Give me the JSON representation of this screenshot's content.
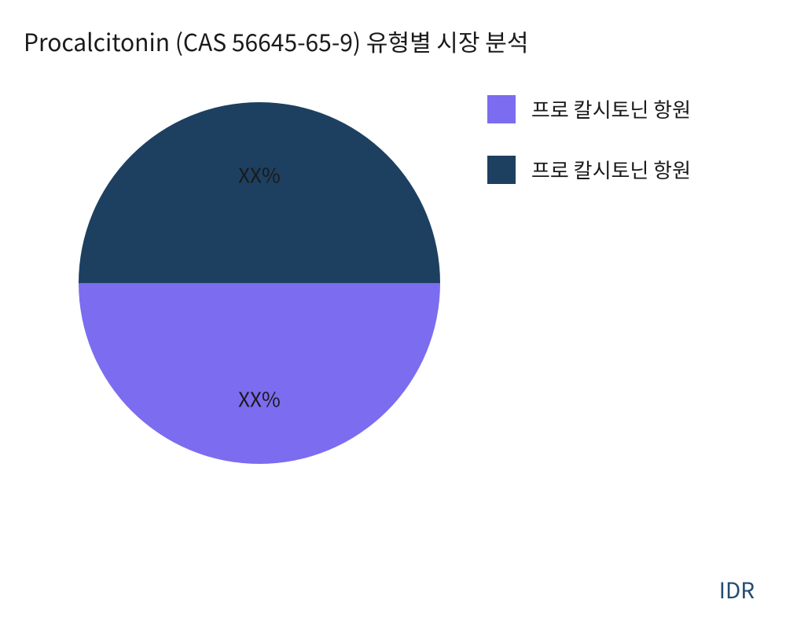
{
  "chart": {
    "type": "pie",
    "title": "Procalcitonin (CAS 56645-65-9) 유형별 시장 분석",
    "title_fontsize": 30,
    "title_color": "#1a1a1a",
    "background_color": "#ffffff",
    "slices": [
      {
        "label": "XX%",
        "value": 50,
        "color": "#1d4061",
        "label_color": "#1a1a1a"
      },
      {
        "label": "XX%",
        "value": 50,
        "color": "#7c6cf0",
        "label_color": "#1a1a1a"
      }
    ],
    "slice_label_fontsize": 26,
    "pie_diameter": 460
  },
  "legend": {
    "items": [
      {
        "label": "프로 칼시토닌 항원",
        "color": "#7c6cf0"
      },
      {
        "label": "프로 칼시토닌 항원",
        "color": "#1d4061"
      }
    ],
    "swatch_size": 36,
    "label_fontsize": 26,
    "label_color": "#1a1a1a"
  },
  "footer": {
    "label": "IDR",
    "fontsize": 28,
    "color": "#234b6e"
  }
}
